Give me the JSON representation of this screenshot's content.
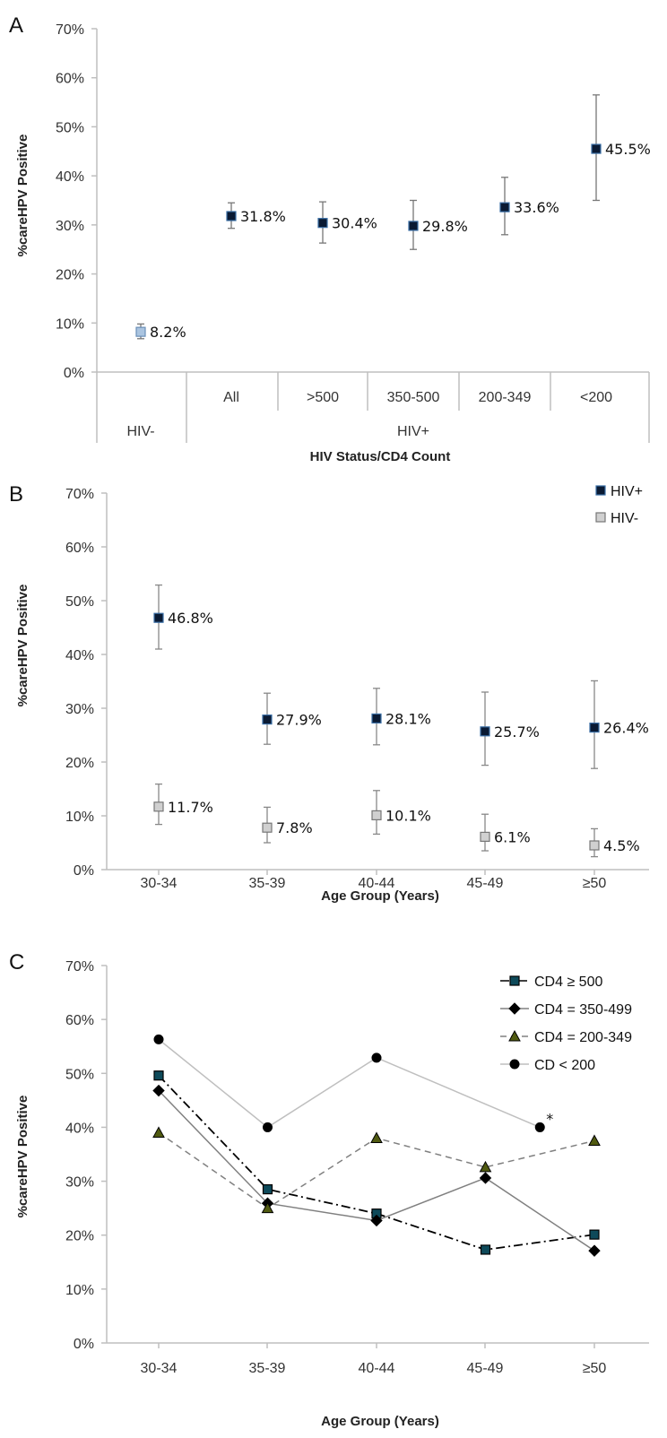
{
  "chart_data": [
    {
      "panel": "A",
      "type": "scatter",
      "ylabel": "%careHPV Positive",
      "xlabel": "HIV Status/CD4 Count",
      "ylim": [
        0,
        70
      ],
      "y_ticks": [
        "0%",
        "10%",
        "20%",
        "30%",
        "40%",
        "50%",
        "60%",
        "70%"
      ],
      "group_labels": [
        "HIV-",
        "HIV+"
      ],
      "categories": [
        "",
        "All",
        ">500",
        "350-500",
        "200-349",
        "<200"
      ],
      "points": [
        {
          "value": 8.2,
          "low": 6.8,
          "high": 9.8,
          "label": "8.2%",
          "color": "#aac4e0"
        },
        {
          "value": 31.8,
          "low": 29.3,
          "high": 34.5,
          "label": "31.8%",
          "color": "#0a1a33"
        },
        {
          "value": 30.4,
          "low": 26.3,
          "high": 34.7,
          "label": "30.4%",
          "color": "#0a1a33"
        },
        {
          "value": 29.8,
          "low": 25.0,
          "high": 35.0,
          "label": "29.8%",
          "color": "#0a1a33"
        },
        {
          "value": 33.6,
          "low": 28.0,
          "high": 39.7,
          "label": "33.6%",
          "color": "#0a1a33"
        },
        {
          "value": 45.5,
          "low": 35.0,
          "high": 56.5,
          "label": "45.5%",
          "color": "#0a1a33"
        }
      ]
    },
    {
      "panel": "B",
      "type": "scatter",
      "ylabel": "%careHPV Positive",
      "xlabel": "Age Group (Years)",
      "ylim": [
        0,
        70
      ],
      "y_ticks": [
        "0%",
        "10%",
        "20%",
        "30%",
        "40%",
        "50%",
        "60%",
        "70%"
      ],
      "categories": [
        "30-34",
        "35-39",
        "40-44",
        "45-49",
        "≥50"
      ],
      "legend": "top-right",
      "series": [
        {
          "name": "HIV+",
          "color": "#0a1a33",
          "values": [
            46.8,
            27.9,
            28.1,
            25.7,
            26.4
          ],
          "low": [
            41.0,
            23.3,
            23.2,
            19.4,
            18.8
          ],
          "high": [
            52.9,
            32.8,
            33.7,
            33.0,
            35.1
          ],
          "labels": [
            "46.8%",
            "27.9%",
            "28.1%",
            "25.7%",
            "26.4%"
          ]
        },
        {
          "name": "HIV-",
          "color": "#d0d0d0",
          "values": [
            11.7,
            7.8,
            10.1,
            6.1,
            4.5
          ],
          "low": [
            8.4,
            5.0,
            6.6,
            3.5,
            2.4
          ],
          "high": [
            15.9,
            11.6,
            14.7,
            10.3,
            7.6
          ],
          "labels": [
            "11.7%",
            "7.8%",
            "10.1%",
            "6.1%",
            "4.5%"
          ]
        }
      ]
    },
    {
      "panel": "C",
      "type": "line",
      "ylabel": "%careHPV Positive",
      "xlabel": "Age Group (Years)",
      "ylim": [
        0,
        70
      ],
      "y_ticks": [
        "0%",
        "10%",
        "20%",
        "30%",
        "40%",
        "50%",
        "60%",
        "70%"
      ],
      "categories": [
        "30-34",
        "35-39",
        "40-44",
        "45-49",
        "≥50"
      ],
      "legend": "top-right",
      "annotation": "*",
      "series": [
        {
          "name": "CD4 ≥ 500",
          "marker": "square",
          "dash": "dashdot",
          "color": "#000000",
          "x": [
            0,
            1,
            2,
            3,
            4
          ],
          "values": [
            49.6,
            28.5,
            24.0,
            17.3,
            20.1
          ]
        },
        {
          "name": "CD4 = 350-499",
          "marker": "diamond",
          "dash": "solid",
          "color": "#808080",
          "x": [
            0,
            1,
            2,
            3,
            4
          ],
          "values": [
            46.8,
            25.9,
            22.7,
            30.6,
            17.1
          ]
        },
        {
          "name": "CD4 = 200-349",
          "marker": "triangle",
          "dash": "dashed",
          "color": "#808080",
          "x": [
            0,
            1,
            2,
            3,
            4
          ],
          "values": [
            39.0,
            25.0,
            38.0,
            32.6,
            37.5
          ]
        },
        {
          "name": "CD < 200",
          "marker": "circle",
          "dash": "solid",
          "color": "#bfbfbf",
          "x": [
            0,
            1,
            2,
            3.5
          ],
          "values": [
            56.3,
            40.0,
            52.9,
            40.0
          ]
        }
      ]
    }
  ]
}
